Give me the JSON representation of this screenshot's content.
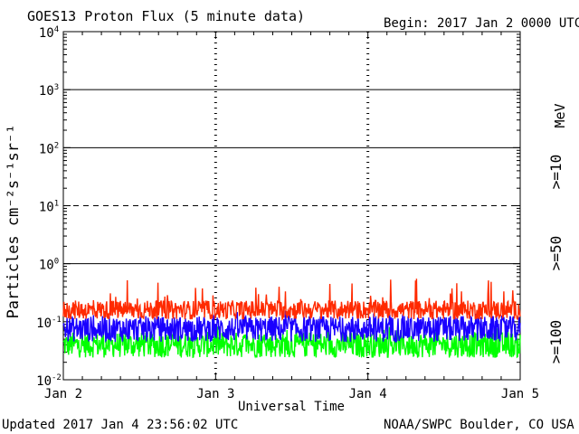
{
  "chart_data": {
    "type": "line",
    "title": "GOES13 Proton Flux (5 minute data)",
    "begin_label": "Begin: 2017 Jan 2 0000 UTC",
    "xlabel": "Universal Time",
    "ylabel": "Particles cm⁻²s⁻¹sr⁻¹",
    "y_scale": "log",
    "ylim": [
      0.01,
      10000
    ],
    "y_ticks": [
      {
        "value": 0.01,
        "base": "10",
        "exp": "-2"
      },
      {
        "value": 0.1,
        "base": "10",
        "exp": "-1"
      },
      {
        "value": 1,
        "base": "10",
        "exp": "0"
      },
      {
        "value": 10,
        "base": "10",
        "exp": "1"
      },
      {
        "value": 100,
        "base": "10",
        "exp": "2"
      },
      {
        "value": 1000,
        "base": "10",
        "exp": "3"
      },
      {
        "value": 10000,
        "base": "10",
        "exp": "4"
      }
    ],
    "x_ticks": [
      "Jan 2",
      "Jan 3",
      "Jan 4",
      "Jan 5"
    ],
    "xlim_days": [
      0,
      3
    ],
    "threshold_lines": [
      {
        "value": 1,
        "style": "solid"
      },
      {
        "value": 10,
        "style": "dashed"
      },
      {
        "value": 100,
        "style": "solid"
      },
      {
        "value": 1000,
        "style": "solid"
      }
    ],
    "series": [
      {
        "name": ">=10",
        "color": "#ff2a00",
        "typical": 0.16,
        "low": 0.11,
        "high": 0.55
      },
      {
        "name": ">=50",
        "color": "#1a00ff",
        "typical": 0.075,
        "low": 0.045,
        "high": 0.16
      },
      {
        "name": ">=100",
        "color": "#00ff00",
        "typical": 0.04,
        "low": 0.024,
        "high": 0.085
      }
    ],
    "unit_label": "MeV",
    "updated": "Updated 2017 Jan  4 23:56:02 UTC",
    "credit": "NOAA/SWPC Boulder, CO USA"
  }
}
